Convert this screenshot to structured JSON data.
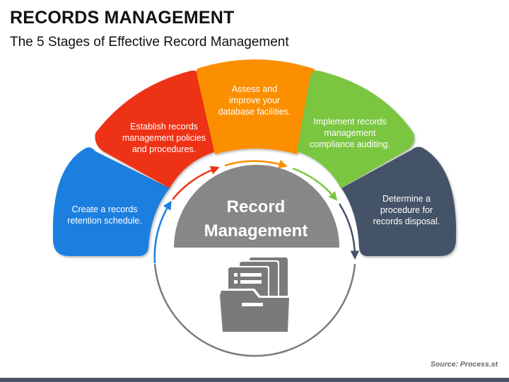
{
  "header": {
    "title": "RECORDS MANAGEMENT",
    "subtitle": "The 5 Stages of Effective Record Management"
  },
  "center": {
    "line1": "Record",
    "line2": "Management",
    "icon": "folder-documents-icon"
  },
  "stages": [
    {
      "lines": [
        "Create a records",
        "retention schedule."
      ],
      "color": "#1a7fe0"
    },
    {
      "lines": [
        "Establish records",
        "management policies",
        "and procedures."
      ],
      "color": "#ee3212"
    },
    {
      "lines": [
        "Assess and",
        "improve your",
        "database facilities."
      ],
      "color": "#fc8f00"
    },
    {
      "lines": [
        "Implement records",
        "management",
        "compliance auditing."
      ],
      "color": "#7ac63f"
    },
    {
      "lines": [
        "Determine a",
        "procedure for",
        "records disposal."
      ],
      "color": "#455267"
    }
  ],
  "footer": {
    "source": "Source: Process.st"
  },
  "colors": {
    "center_fill": "#878787",
    "ring": "#7a7a7a",
    "icon": "#7a7a7a"
  }
}
